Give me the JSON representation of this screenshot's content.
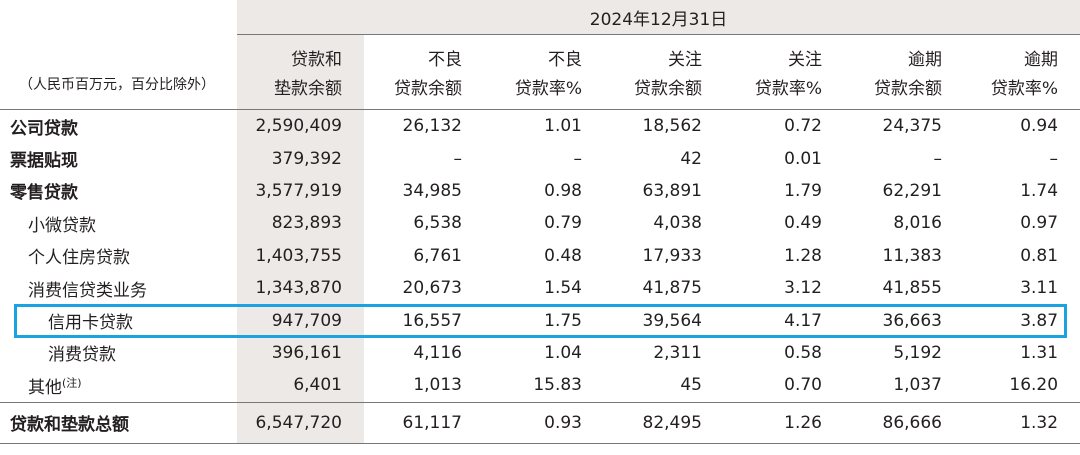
{
  "header": {
    "date": "2024年12月31日",
    "unit_note": "（人民币百万元，百分比除外）",
    "columns": [
      {
        "line1": "贷款和",
        "line2": "垫款余额"
      },
      {
        "line1": "不良",
        "line2": "贷款余额"
      },
      {
        "line1": "不良",
        "line2": "贷款率%"
      },
      {
        "line1": "关注",
        "line2": "贷款余额"
      },
      {
        "line1": "关注",
        "line2": "贷款率%"
      },
      {
        "line1": "逾期",
        "line2": "贷款余额"
      },
      {
        "line1": "逾期",
        "line2": "贷款率%"
      }
    ]
  },
  "rows": [
    {
      "label": "公司贷款",
      "values": [
        "2,590,409",
        "26,132",
        "1.01",
        "18,562",
        "0.72",
        "24,375",
        "0.94"
      ]
    },
    {
      "label": "票据贴现",
      "values": [
        "379,392",
        "–",
        "–",
        "42",
        "0.01",
        "–",
        "–"
      ]
    },
    {
      "label": "零售贷款",
      "values": [
        "3,577,919",
        "34,985",
        "0.98",
        "63,891",
        "1.79",
        "62,291",
        "1.74"
      ]
    },
    {
      "label": "小微贷款",
      "values": [
        "823,893",
        "6,538",
        "0.79",
        "4,038",
        "0.49",
        "8,016",
        "0.97"
      ]
    },
    {
      "label": "个人住房贷款",
      "values": [
        "1,403,755",
        "6,761",
        "0.48",
        "17,933",
        "1.28",
        "11,383",
        "0.81"
      ]
    },
    {
      "label": "消费信贷类业务",
      "values": [
        "1,343,870",
        "20,673",
        "1.54",
        "41,875",
        "3.12",
        "41,855",
        "3.11"
      ]
    },
    {
      "label": "信用卡贷款",
      "values": [
        "947,709",
        "16,557",
        "1.75",
        "39,564",
        "4.17",
        "36,663",
        "3.87"
      ]
    },
    {
      "label": "消费贷款",
      "values": [
        "396,161",
        "4,116",
        "1.04",
        "2,311",
        "0.58",
        "5,192",
        "1.31"
      ]
    },
    {
      "label": "其他",
      "note": "(注)",
      "values": [
        "6,401",
        "1,013",
        "15.83",
        "45",
        "0.70",
        "1,037",
        "16.20"
      ]
    }
  ],
  "total": {
    "label": "贷款和垫款总额",
    "values": [
      "6,547,720",
      "61,117",
      "0.93",
      "82,495",
      "1.26",
      "86,666",
      "1.32"
    ]
  },
  "highlight_color": "#1aa3e0"
}
